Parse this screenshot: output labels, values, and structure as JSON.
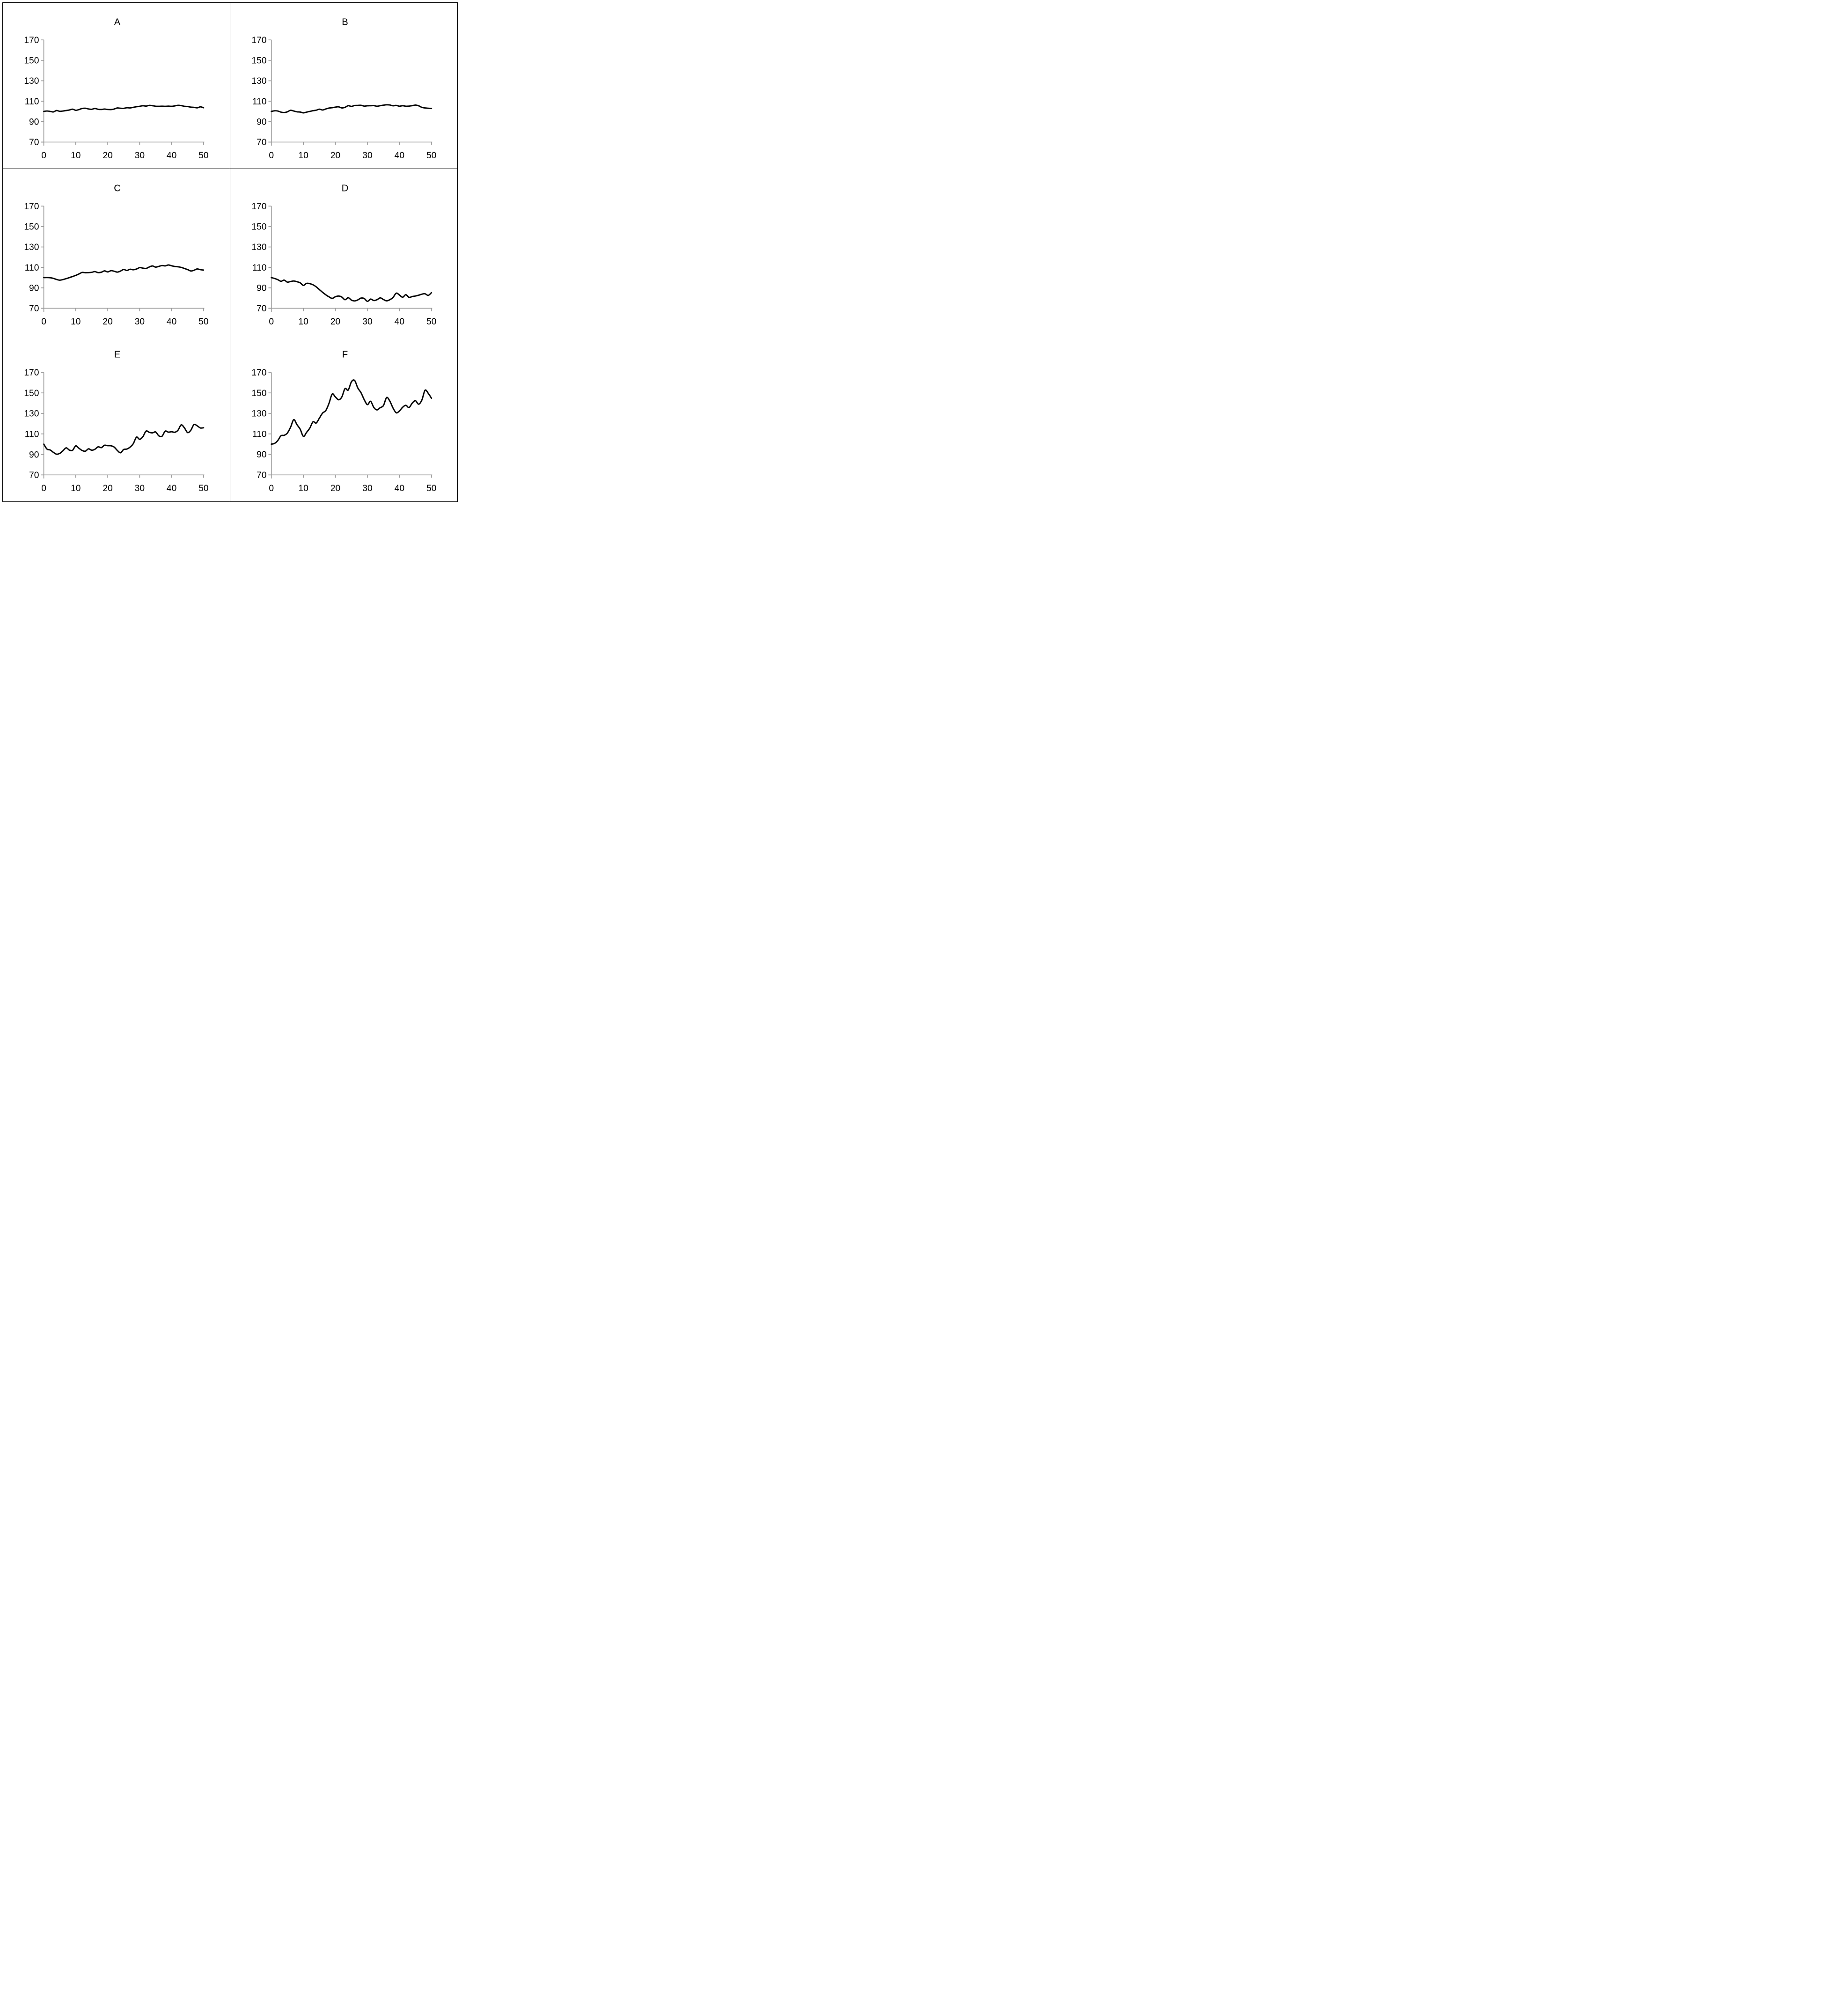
{
  "page": {
    "background": "#ffffff",
    "border_color": "#000000"
  },
  "styles": {
    "axis_color": "#9b9b9b",
    "line_color": "#000000",
    "text_color": "#000000"
  },
  "chart_data": [
    {
      "panel": "A",
      "type": "line",
      "title": "A",
      "xlabel": "",
      "ylabel": "",
      "xlim": [
        0,
        50
      ],
      "ylim": [
        70,
        170
      ],
      "x_ticks": [
        0,
        10,
        20,
        30,
        40,
        50
      ],
      "y_ticks": [
        70,
        90,
        110,
        130,
        150,
        170
      ],
      "grid": false,
      "legend": false,
      "x_start": 0,
      "x_step": 1,
      "values": [
        100,
        100.4,
        100.0,
        99.5,
        100.9,
        100.1,
        100.4,
        100.9,
        101.4,
        102.2,
        101.1,
        101.8,
        102.9,
        103.1,
        102.4,
        102.1,
        102.9,
        102.1,
        101.9,
        102.3,
        101.9,
        101.8,
        102.3,
        103.4,
        103.1,
        103.0,
        103.6,
        103.4,
        104.0,
        104.6,
        105.0,
        105.6,
        105.2,
        105.9,
        105.6,
        105.1,
        105.0,
        105.1,
        105.0,
        105.2,
        105.0,
        105.4,
        106.0,
        105.7,
        105.0,
        104.8,
        104.2,
        104.0,
        103.5,
        104.5,
        103.6
      ]
    },
    {
      "panel": "B",
      "type": "line",
      "title": "B",
      "xlabel": "",
      "ylabel": "",
      "xlim": [
        0,
        50
      ],
      "ylim": [
        70,
        170
      ],
      "x_ticks": [
        0,
        10,
        20,
        30,
        40,
        50
      ],
      "y_ticks": [
        70,
        90,
        110,
        130,
        150,
        170
      ],
      "grid": false,
      "legend": false,
      "x_start": 0,
      "x_step": 1,
      "values": [
        100,
        100.6,
        100.4,
        99.3,
        98.9,
        99.6,
        101.1,
        100.4,
        99.6,
        99.4,
        98.6,
        99.3,
        100.0,
        100.7,
        101.2,
        102.2,
        101.4,
        102.4,
        103.3,
        103.6,
        104.2,
        104.5,
        103.4,
        104.0,
        105.6,
        104.9,
        105.8,
        105.9,
        106.0,
        105.2,
        105.5,
        105.6,
        105.7,
        105.1,
        105.6,
        106.1,
        106.5,
        106.3,
        105.5,
        105.9,
        105.1,
        105.6,
        105.1,
        105.2,
        105.6,
        106.2,
        105.5,
        104.0,
        103.4,
        103.1,
        102.9
      ]
    },
    {
      "panel": "C",
      "type": "line",
      "title": "C",
      "xlabel": "",
      "ylabel": "",
      "xlim": [
        0,
        50
      ],
      "ylim": [
        70,
        170
      ],
      "x_ticks": [
        0,
        10,
        20,
        30,
        40,
        50
      ],
      "y_ticks": [
        70,
        90,
        110,
        130,
        150,
        170
      ],
      "grid": false,
      "legend": false,
      "x_start": 0,
      "x_step": 1,
      "values": [
        100,
        100.1,
        99.9,
        99.3,
        98.2,
        97.5,
        98.1,
        99.0,
        100.0,
        101.1,
        102.2,
        103.6,
        105.1,
        104.8,
        104.9,
        105.2,
        105.9,
        104.9,
        105.3,
        106.6,
        105.6,
        106.8,
        106.3,
        105.4,
        106.4,
        108.0,
        107.0,
        108.2,
        107.7,
        108.4,
        109.8,
        109.3,
        109.0,
        110.4,
        111.4,
        110.3,
        111.0,
        111.8,
        111.5,
        112.4,
        111.6,
        110.9,
        110.6,
        110.0,
        109.0,
        107.9,
        106.5,
        107.2,
        108.5,
        107.8,
        107.4
      ]
    },
    {
      "panel": "D",
      "type": "line",
      "title": "D",
      "xlabel": "",
      "ylabel": "",
      "xlim": [
        0,
        50
      ],
      "ylim": [
        70,
        170
      ],
      "x_ticks": [
        0,
        10,
        20,
        30,
        40,
        50
      ],
      "y_ticks": [
        70,
        90,
        110,
        130,
        150,
        170
      ],
      "grid": false,
      "legend": false,
      "x_start": 0,
      "x_step": 1,
      "values": [
        100,
        99.2,
        98.0,
        96.4,
        97.6,
        95.6,
        96.2,
        96.7,
        96.0,
        94.9,
        92.4,
        94.4,
        94.1,
        93.0,
        91.0,
        88.3,
        85.6,
        83.2,
        81.2,
        79.7,
        81.3,
        82.0,
        81.0,
        78.4,
        80.4,
        78.0,
        77.2,
        78.2,
        80.0,
        79.6,
        76.8,
        79.0,
        77.6,
        78.4,
        80.2,
        78.6,
        77.3,
        78.4,
        80.6,
        84.8,
        83.0,
        80.8,
        83.3,
        80.7,
        81.5,
        82.0,
        82.8,
        83.8,
        84.2,
        82.6,
        85.3
      ]
    },
    {
      "panel": "E",
      "type": "line",
      "title": "E",
      "xlabel": "",
      "ylabel": "",
      "xlim": [
        0,
        50
      ],
      "ylim": [
        70,
        170
      ],
      "x_ticks": [
        0,
        10,
        20,
        30,
        40,
        50
      ],
      "y_ticks": [
        70,
        90,
        110,
        130,
        150,
        170
      ],
      "grid": false,
      "legend": false,
      "x_start": 0,
      "x_step": 1,
      "values": [
        100,
        95.2,
        94.3,
        92.0,
        90.2,
        91.0,
        93.5,
        96.4,
        94.2,
        94.0,
        98.3,
        96.0,
        93.8,
        93.1,
        95.4,
        94.1,
        95.0,
        97.4,
        96.6,
        98.9,
        98.5,
        98.4,
        97.2,
        93.9,
        91.6,
        94.8,
        95.2,
        97.1,
        100.4,
        106.8,
        104.7,
        107.2,
        112.7,
        111.6,
        111.0,
        111.9,
        108.1,
        107.7,
        112.7,
        111.7,
        112.1,
        111.6,
        113.6,
        118.8,
        115.9,
        111.3,
        113.5,
        119.1,
        117.9,
        115.8,
        116.0
      ]
    },
    {
      "panel": "F",
      "type": "line",
      "title": "F",
      "xlabel": "",
      "ylabel": "",
      "xlim": [
        0,
        50
      ],
      "ylim": [
        70,
        170
      ],
      "x_ticks": [
        0,
        10,
        20,
        30,
        40,
        50
      ],
      "y_ticks": [
        70,
        90,
        110,
        130,
        150,
        170
      ],
      "grid": false,
      "legend": false,
      "x_start": 0,
      "x_step": 1,
      "values": [
        100,
        100.7,
        103.5,
        108.2,
        108.6,
        110.8,
        116.5,
        123.9,
        119.0,
        114.6,
        107.6,
        111.5,
        115.6,
        121.8,
        120.6,
        125.4,
        130.3,
        132.8,
        139.8,
        148.9,
        146.0,
        143.3,
        146.0,
        154.2,
        152.8,
        160.8,
        162.2,
        154.8,
        150.2,
        143.4,
        138.6,
        141.8,
        135.8,
        133.4,
        135.6,
        137.6,
        145.5,
        142.0,
        135.2,
        130.6,
        132.4,
        136.0,
        137.9,
        135.7,
        140.1,
        142.4,
        139.0,
        143.0,
        152.6,
        149.6,
        144.8
      ]
    }
  ]
}
